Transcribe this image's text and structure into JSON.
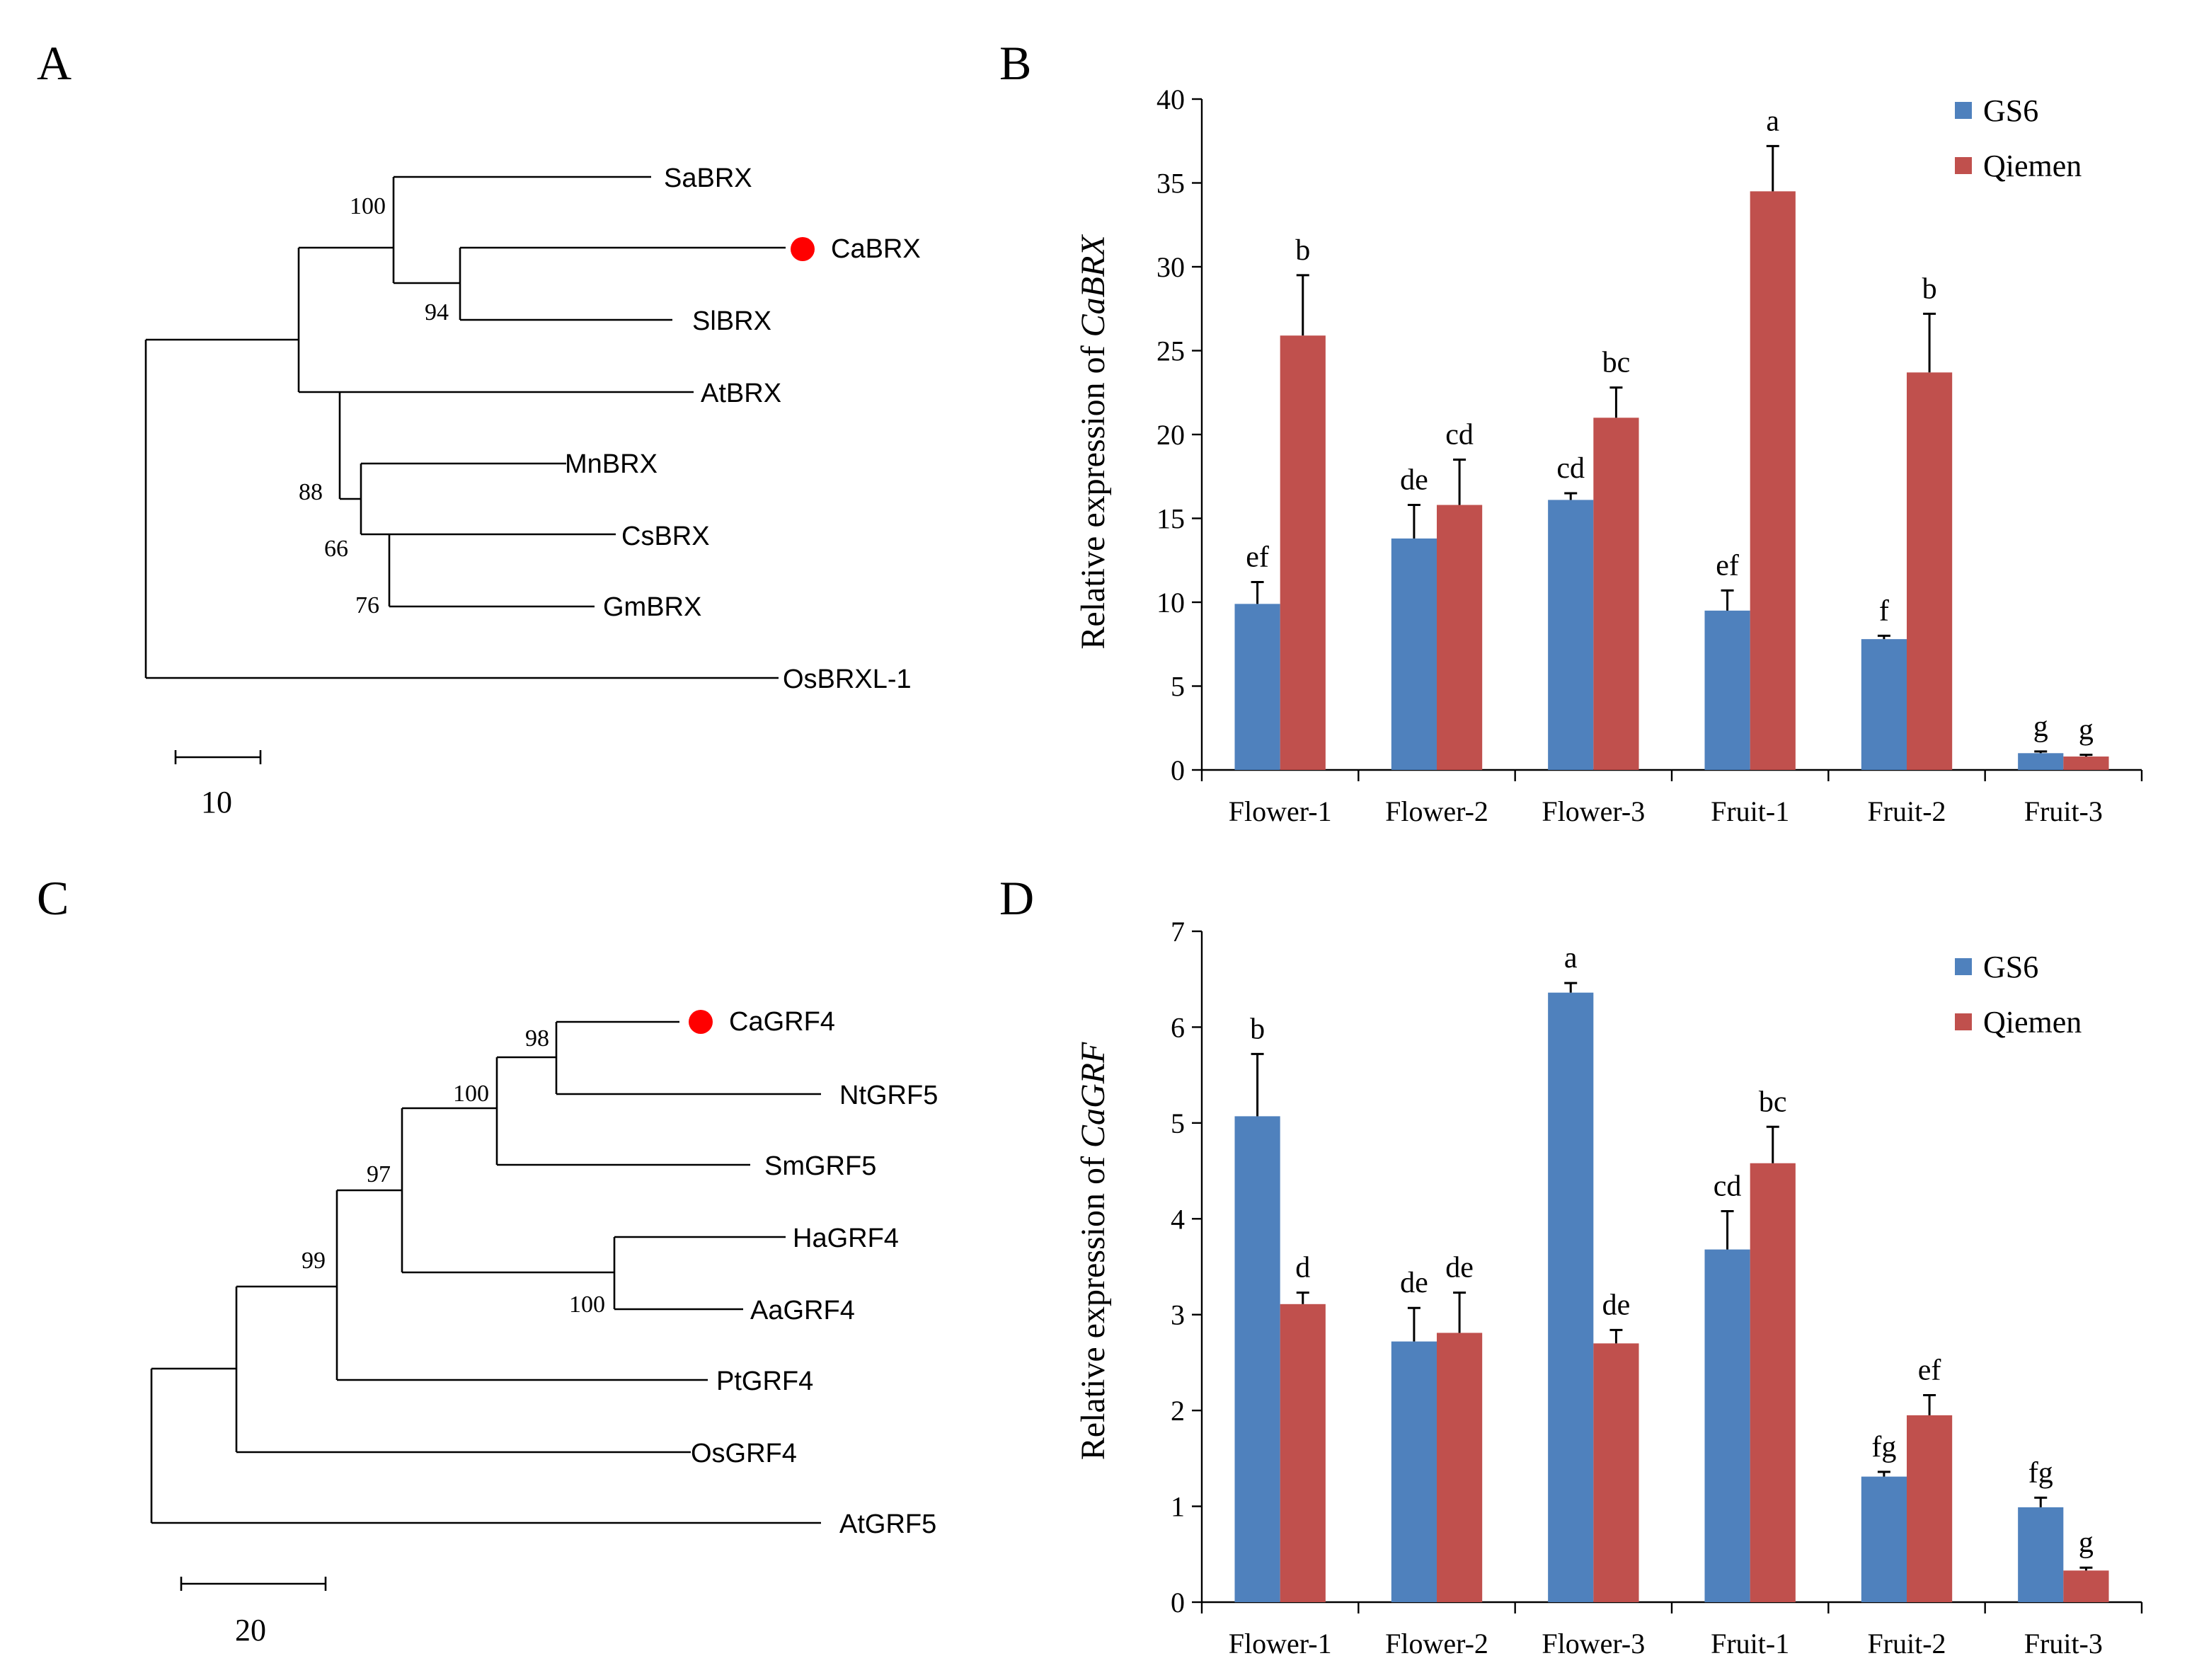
{
  "panels": {
    "A": "A",
    "B": "B",
    "C": "C",
    "D": "D"
  },
  "colors": {
    "gs6": "#4f81bd",
    "qiemen": "#c0504d",
    "marker": "#ff0000"
  },
  "tree_a": {
    "taxa": [
      "SaBRX",
      "CaBRX",
      "SlBRX",
      "AtBRX",
      "MnBRX",
      "CsBRX",
      "GmBRX",
      "OsBRXL-1"
    ],
    "highlight": "CaBRX",
    "bootstrap": [
      "100",
      "94",
      "88",
      "66",
      "76"
    ],
    "scale": "10"
  },
  "tree_c": {
    "taxa": [
      "CaGRF4",
      "NtGRF5",
      "SmGRF5",
      "HaGRF4",
      "AaGRF4",
      "PtGRF4",
      "OsGRF4",
      "AtGRF5"
    ],
    "highlight": "CaGRF4",
    "bootstrap": [
      "98",
      "100",
      "97",
      "99",
      "100"
    ],
    "scale": "20"
  },
  "chart_data": [
    {
      "panel": "B",
      "type": "bar",
      "ylabel": "Relative expression of CaBRX",
      "ylabel_prefix": "Relative expression of ",
      "ylabel_gene": "CaBRX",
      "ylim": [
        0,
        40
      ],
      "yticks": [
        "0",
        "5",
        "10",
        "15",
        "20",
        "25",
        "30",
        "35",
        "40"
      ],
      "categories": [
        "Flower-1",
        "Flower-2",
        "Flower-3",
        "Fruit-1",
        "Fruit-2",
        "Fruit-3"
      ],
      "series": [
        {
          "name": "GS6",
          "values": [
            9.9,
            13.8,
            16.1,
            9.5,
            7.8,
            1.0
          ],
          "errors": [
            1.3,
            2.0,
            0.4,
            1.2,
            0.2,
            0.1
          ],
          "letters": [
            "ef",
            "de",
            "cd",
            "ef",
            "f",
            "g"
          ]
        },
        {
          "name": "Qiemen",
          "values": [
            25.9,
            15.8,
            21.0,
            34.5,
            23.7,
            0.8
          ],
          "errors": [
            3.6,
            2.7,
            1.8,
            2.7,
            3.5,
            0.1
          ],
          "letters": [
            "b",
            "cd",
            "bc",
            "a",
            "b",
            "g"
          ]
        }
      ],
      "legend": [
        "GS6",
        "Qiemen"
      ],
      "legend_position": "top-right"
    },
    {
      "panel": "D",
      "type": "bar",
      "ylabel": "Relative expression of CaGRF",
      "ylabel_prefix": "Relative expression of ",
      "ylabel_gene": "CaGRF",
      "ylim": [
        0,
        7
      ],
      "yticks": [
        "0",
        "1",
        "2",
        "3",
        "4",
        "5",
        "6",
        "7"
      ],
      "categories": [
        "Flower-1",
        "Flower-2",
        "Flower-3",
        "Fruit-1",
        "Fruit-2",
        "Fruit-3"
      ],
      "series": [
        {
          "name": "GS6",
          "values": [
            5.07,
            2.72,
            6.36,
            3.68,
            1.31,
            0.99
          ],
          "errors": [
            0.65,
            0.35,
            0.1,
            0.4,
            0.05,
            0.1
          ],
          "letters": [
            "b",
            "de",
            "a",
            "cd",
            "fg",
            "fg"
          ]
        },
        {
          "name": "Qiemen",
          "values": [
            3.11,
            2.81,
            2.7,
            4.58,
            1.95,
            0.33
          ],
          "errors": [
            0.12,
            0.42,
            0.14,
            0.38,
            0.21,
            0.03
          ],
          "letters": [
            "d",
            "de",
            "de",
            "bc",
            "ef",
            "g"
          ]
        }
      ],
      "legend": [
        "GS6",
        "Qiemen"
      ],
      "legend_position": "top-right"
    }
  ]
}
